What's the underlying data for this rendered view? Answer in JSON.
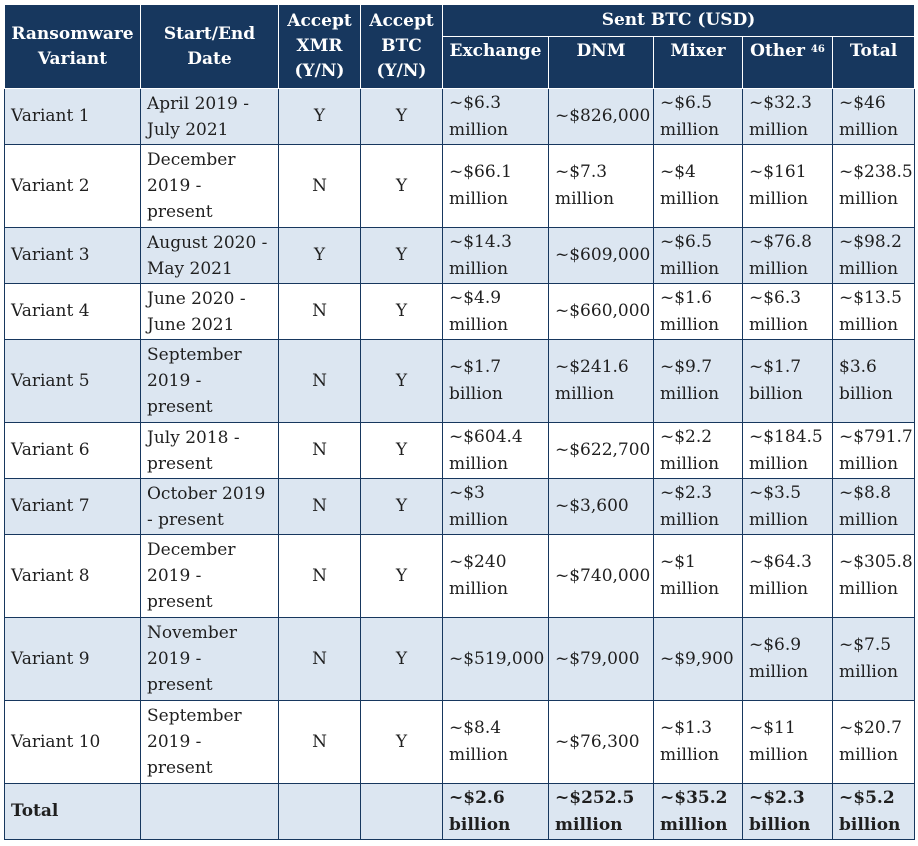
{
  "headers": {
    "variant": "Ransomware Variant",
    "dates": "Start/End Date",
    "xmr": "Accept XMR (Y/N)",
    "btc": "Accept BTC (Y/N)",
    "sent": "Sent BTC (USD)",
    "exchange": "Exchange",
    "dnm": "DNM",
    "mixer": "Mixer",
    "other": "Other",
    "other_footnote": "46",
    "total": "Total"
  },
  "rows": [
    {
      "variant": "Variant 1",
      "dates": "April 2019 - July 2021",
      "xmr": "Y",
      "btc": "Y",
      "exchange": "~$6.3 million",
      "dnm": "~$826,000",
      "mixer": "~$6.5 million",
      "other": "~$32.3 million",
      "total": "~$46 million"
    },
    {
      "variant": "Variant 2",
      "dates": "December 2019 - present",
      "xmr": "N",
      "btc": "Y",
      "exchange": "~$66.1 million",
      "dnm": "~$7.3 million",
      "mixer": "~$4 million",
      "other": "~$161 million",
      "total": "~$238.5 million"
    },
    {
      "variant": "Variant 3",
      "dates": "August 2020 - May 2021",
      "xmr": "Y",
      "btc": "Y",
      "exchange": "~$14.3 million",
      "dnm": "~$609,000",
      "mixer": "~$6.5 million",
      "other": "~$76.8 million",
      "total": "~$98.2 million"
    },
    {
      "variant": "Variant 4",
      "dates": "June 2020 - June 2021",
      "xmr": "N",
      "btc": "Y",
      "exchange": "~$4.9 million",
      "dnm": "~$660,000",
      "mixer": "~$1.6 million",
      "other": "~$6.3 million",
      "total": "~$13.5 million"
    },
    {
      "variant": "Variant 5",
      "dates": "September 2019 - present",
      "xmr": "N",
      "btc": "Y",
      "exchange": "~$1.7 billion",
      "dnm": "~$241.6 million",
      "mixer": "~$9.7 million",
      "other": "~$1.7 billion",
      "total": "$3.6 billion"
    },
    {
      "variant": "Variant 6",
      "dates": "July 2018 - present",
      "xmr": "N",
      "btc": "Y",
      "exchange": "~$604.4 million",
      "dnm": "~$622,700",
      "mixer": "~$2.2 million",
      "other": "~$184.5 million",
      "total": "~$791.7 million"
    },
    {
      "variant": "Variant 7",
      "dates": "October 2019 - present",
      "xmr": "N",
      "btc": "Y",
      "exchange": "~$3 million",
      "dnm": "~$3,600",
      "mixer": "~$2.3 million",
      "other": "~$3.5 million",
      "total": "~$8.8 million"
    },
    {
      "variant": "Variant 8",
      "dates": "December 2019 - present",
      "xmr": "N",
      "btc": "Y",
      "exchange": "~$240 million",
      "dnm": "~$740,000",
      "mixer": "~$1 million",
      "other": "~$64.3 million",
      "total": "~$305.8 million"
    },
    {
      "variant": "Variant 9",
      "dates": "November 2019 - present",
      "xmr": "N",
      "btc": "Y",
      "exchange": "~$519,000",
      "dnm": "~$79,000",
      "mixer": "~$9,900",
      "other": "~$6.9 million",
      "total": "~$7.5 million"
    },
    {
      "variant": "Variant 10",
      "dates": "September 2019 - present",
      "xmr": "N",
      "btc": "Y",
      "exchange": "~$8.4 million",
      "dnm": "~$76,300",
      "mixer": "~$1.3 million",
      "other": "~$11 million",
      "total": "~$20.7 million"
    }
  ],
  "total_row": {
    "label": "Total",
    "exchange": "~$2.6 billion",
    "dnm": "~$252.5 million",
    "mixer": "~$35.2 million",
    "other": "~$2.3 billion",
    "total": "~$5.2 billion"
  }
}
